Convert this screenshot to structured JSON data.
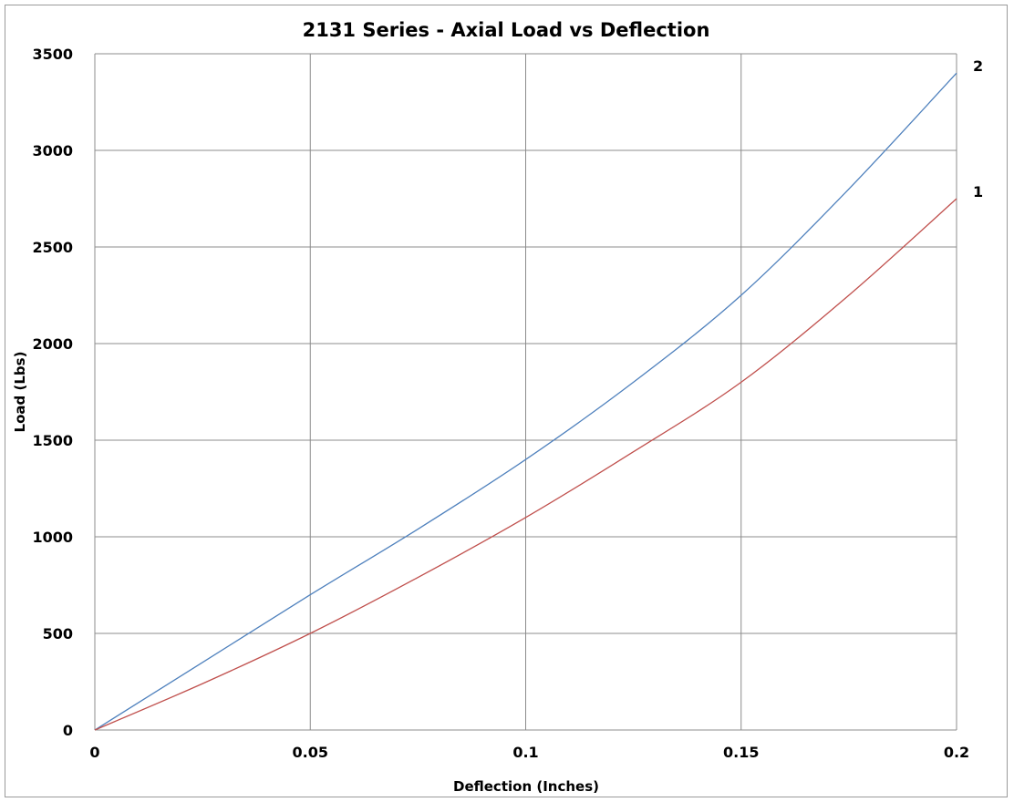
{
  "chart_data": {
    "type": "line",
    "title": "2131 Series - Axial Load vs Deflection",
    "xlabel": "Deflection (Inches)",
    "ylabel": "Load (Lbs)",
    "xlim": [
      0,
      0.2
    ],
    "ylim": [
      0,
      3500
    ],
    "xticks": [
      0,
      0.05,
      0.1,
      0.15,
      0.2
    ],
    "xtick_labels": [
      "0",
      "0.05",
      "0.1",
      "0.15",
      "0.2"
    ],
    "yticks": [
      0,
      500,
      1000,
      1500,
      2000,
      2500,
      3000,
      3500
    ],
    "ytick_labels": [
      "0",
      "500",
      "1000",
      "1500",
      "2000",
      "2500",
      "3000",
      "3500"
    ],
    "grid": true,
    "legend": "none",
    "series": [
      {
        "name": "2",
        "color": "#4f81bd",
        "x": [
          0,
          0.025,
          0.05,
          0.075,
          0.1,
          0.125,
          0.15,
          0.175,
          0.2
        ],
        "y": [
          0,
          350,
          700,
          1040,
          1400,
          1800,
          2250,
          2800,
          3400
        ]
      },
      {
        "name": "1",
        "color": "#c0504d",
        "x": [
          0,
          0.025,
          0.05,
          0.075,
          0.1,
          0.125,
          0.15,
          0.175,
          0.2
        ],
        "y": [
          0,
          240,
          500,
          790,
          1100,
          1440,
          1800,
          2250,
          2750
        ]
      }
    ]
  }
}
